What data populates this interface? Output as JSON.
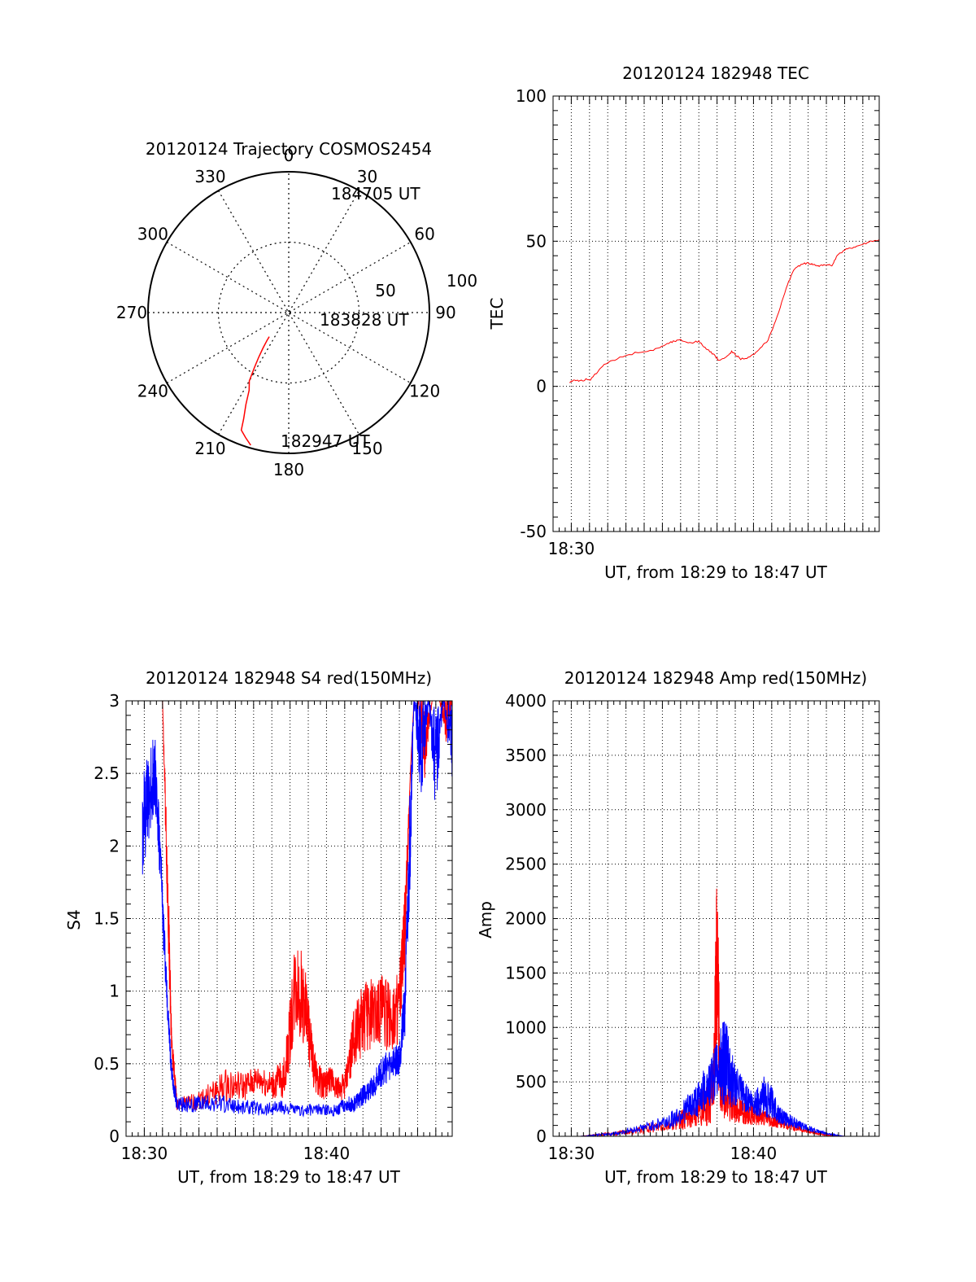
{
  "colors": {
    "red": "#ff0000",
    "blue": "#0000ff",
    "axis": "#000000",
    "grid": "#000000"
  },
  "chart_data": [
    {
      "id": "trajectory",
      "type": "polar",
      "title": "20120124 Trajectory COSMOS2454",
      "angle_labels": [
        "0",
        "30",
        "60",
        "90",
        "120",
        "150",
        "180",
        "210",
        "240",
        "270",
        "300",
        "330"
      ],
      "radial_labels": [
        "50",
        "100"
      ],
      "rlim": [
        0,
        100
      ],
      "grid": true,
      "annotations": [
        "184705 UT",
        "183828 UT",
        "182947 UT"
      ],
      "series": [
        {
          "color": "red",
          "points": [
            [
              196,
              98
            ],
            [
              199,
              94
            ],
            [
              202,
              90
            ],
            [
              203,
              82
            ],
            [
              205,
              72
            ],
            [
              207,
              62
            ],
            [
              210,
              56
            ],
            [
              212,
              46
            ],
            [
              214,
              38
            ],
            [
              216,
              31
            ],
            [
              218,
              25
            ],
            [
              219,
              22
            ]
          ]
        }
      ]
    },
    {
      "id": "tec",
      "type": "line",
      "title": "20120124 182948 TEC",
      "xlabel": "UT, from 18:29 to 18:47 UT",
      "ylabel": "TEC",
      "x_ticks": [
        "18:30"
      ],
      "y_ticks": [
        "-50",
        "0",
        "50",
        "100"
      ],
      "xlim": [
        29.0,
        46.9
      ],
      "ylim": [
        -50,
        100
      ],
      "grid": true,
      "series": [
        {
          "color": "red",
          "x": [
            29.9,
            30.2,
            30.5,
            30.8,
            31.0,
            31.3,
            31.8,
            32.5,
            33.5,
            34.5,
            35.2,
            35.6,
            36.0,
            36.5,
            37.0,
            37.4,
            37.8,
            38.1,
            38.5,
            38.8,
            39.0,
            39.3,
            39.8,
            40.3,
            40.8,
            41.3,
            41.8,
            42.2,
            42.6,
            43.0,
            43.3,
            43.6,
            44.0,
            44.3,
            44.6,
            45.0,
            45.5,
            46.0,
            46.5,
            46.9
          ],
          "y": [
            1.5,
            2.2,
            1.8,
            2.4,
            2.0,
            4.0,
            7.5,
            9.5,
            11.5,
            12.5,
            14.5,
            15.5,
            16.0,
            15.0,
            15.5,
            13.0,
            11.0,
            9.0,
            10.0,
            12.0,
            11.0,
            9.5,
            10.0,
            12.5,
            16.0,
            24.0,
            34.0,
            40.0,
            42.0,
            42.5,
            42.0,
            41.5,
            42.0,
            41.5,
            45.0,
            47.0,
            48.0,
            49.0,
            50.0,
            50.5
          ]
        }
      ]
    },
    {
      "id": "s4",
      "type": "line",
      "title": "20120124 182948 S4 red(150MHz)",
      "xlabel": "UT, from 18:29 to 18:47 UT",
      "ylabel": "S4",
      "x_ticks": [
        "18:30",
        "18:40"
      ],
      "y_ticks": [
        "0",
        "0.5",
        "1",
        "1.5",
        "2",
        "2.5",
        "3"
      ],
      "xlim": [
        29.0,
        46.9
      ],
      "ylim": [
        0,
        3
      ],
      "grid": true,
      "series": [
        {
          "color": "red",
          "x": [
            29.9,
            30.2,
            30.6,
            31.0,
            31.3,
            31.5,
            31.8,
            32.5,
            33.5,
            34.5,
            35.5,
            36.3,
            37.0,
            37.7,
            38.3,
            38.8,
            39.3,
            39.8,
            40.2,
            40.6,
            41.0,
            41.5,
            42.0,
            42.5,
            43.0,
            43.5,
            44.0,
            44.3,
            44.6,
            44.8,
            45.0,
            45.4,
            45.8,
            46.2,
            46.6,
            46.9
          ],
          "y": [
            3.0,
            3.0,
            3.0,
            3.0,
            1.5,
            0.6,
            0.2,
            0.2,
            0.25,
            0.3,
            0.3,
            0.35,
            0.3,
            0.35,
            0.9,
            0.8,
            0.4,
            0.3,
            0.35,
            0.3,
            0.3,
            0.6,
            0.7,
            0.75,
            0.8,
            0.7,
            0.8,
            1.3,
            2.5,
            3.0,
            3.0,
            2.6,
            3.0,
            3.0,
            2.8,
            3.0
          ],
          "amp": [
            0.0,
            0.0,
            0.0,
            0.0,
            0.3,
            0.1,
            0.05,
            0.06,
            0.08,
            0.12,
            0.1,
            0.1,
            0.1,
            0.15,
            0.35,
            0.3,
            0.15,
            0.1,
            0.1,
            0.08,
            0.1,
            0.2,
            0.25,
            0.25,
            0.25,
            0.25,
            0.25,
            0.3,
            0.0,
            0.0,
            0.0,
            0.3,
            0.0,
            0.0,
            0.2,
            0.0
          ]
        },
        {
          "color": "blue",
          "x": [
            29.9,
            30.2,
            30.6,
            31.0,
            31.3,
            31.5,
            31.8,
            32.5,
            33.5,
            34.5,
            35.5,
            36.5,
            37.5,
            38.5,
            39.5,
            40.5,
            41.0,
            41.5,
            42.0,
            42.5,
            43.0,
            43.5,
            44.0,
            44.3,
            44.6,
            44.8,
            45.2,
            45.6,
            46.0,
            46.4,
            46.9
          ],
          "y": [
            2.0,
            2.2,
            2.4,
            1.5,
            0.8,
            0.4,
            0.2,
            0.2,
            0.2,
            0.2,
            0.18,
            0.17,
            0.18,
            0.16,
            0.17,
            0.16,
            0.2,
            0.2,
            0.25,
            0.3,
            0.4,
            0.45,
            0.5,
            0.8,
            2.0,
            3.0,
            2.5,
            3.0,
            2.4,
            3.0,
            2.6
          ],
          "amp": [
            0.35,
            0.3,
            0.3,
            0.2,
            0.1,
            0.08,
            0.05,
            0.06,
            0.06,
            0.06,
            0.05,
            0.05,
            0.05,
            0.04,
            0.04,
            0.04,
            0.05,
            0.06,
            0.07,
            0.08,
            0.1,
            0.12,
            0.12,
            0.2,
            0.4,
            0.0,
            0.4,
            0.0,
            0.4,
            0.0,
            0.3
          ]
        }
      ]
    },
    {
      "id": "amp",
      "type": "line",
      "title": "20120124 182948 Amp red(150MHz)",
      "xlabel": "UT, from 18:29 to 18:47 UT",
      "ylabel": "Amp",
      "x_ticks": [
        "18:30",
        "18:40"
      ],
      "y_ticks": [
        "0",
        "500",
        "1000",
        "1500",
        "2000",
        "2500",
        "3000",
        "3500",
        "4000"
      ],
      "xlim": [
        29.0,
        46.9
      ],
      "ylim": [
        0,
        4000
      ],
      "grid": true,
      "series": [
        {
          "color": "red",
          "x": [
            29.9,
            30.5,
            31.5,
            32.5,
            33.5,
            34.5,
            35.5,
            36.2,
            36.8,
            37.3,
            37.8,
            38.0,
            38.2,
            38.5,
            39.0,
            39.5,
            40.0,
            40.5,
            41.0,
            41.5,
            42.0,
            42.5,
            43.0,
            43.5,
            44.0,
            44.5,
            45.0,
            46.0,
            46.9
          ],
          "y": [
            0,
            0,
            10,
            20,
            40,
            60,
            90,
            120,
            150,
            200,
            300,
            1200,
            300,
            250,
            200,
            180,
            160,
            150,
            120,
            100,
            80,
            60,
            40,
            20,
            10,
            5,
            0,
            0,
            0
          ],
          "amp": [
            0,
            0,
            10,
            20,
            30,
            50,
            60,
            100,
            120,
            200,
            300,
            1000,
            250,
            200,
            150,
            120,
            100,
            80,
            60,
            50,
            40,
            30,
            20,
            10,
            5,
            0,
            0,
            0,
            0
          ]
        },
        {
          "color": "blue",
          "x": [
            29.9,
            30.5,
            31.5,
            32.5,
            33.5,
            34.5,
            35.5,
            36.2,
            36.8,
            37.3,
            37.8,
            38.1,
            38.4,
            38.7,
            39.0,
            39.5,
            40.0,
            40.5,
            41.0,
            41.5,
            42.0,
            42.5,
            43.0,
            43.5,
            44.0,
            44.5,
            45.0,
            46.0,
            46.9
          ],
          "y": [
            0,
            0,
            10,
            20,
            50,
            80,
            120,
            180,
            250,
            350,
            450,
            500,
            550,
            450,
            380,
            300,
            250,
            300,
            250,
            150,
            120,
            90,
            60,
            40,
            20,
            10,
            0,
            0,
            0
          ],
          "amp": [
            0,
            0,
            10,
            20,
            30,
            50,
            80,
            120,
            150,
            200,
            250,
            300,
            450,
            300,
            200,
            150,
            120,
            200,
            150,
            80,
            60,
            40,
            30,
            20,
            10,
            5,
            0,
            0,
            0
          ]
        }
      ]
    }
  ]
}
